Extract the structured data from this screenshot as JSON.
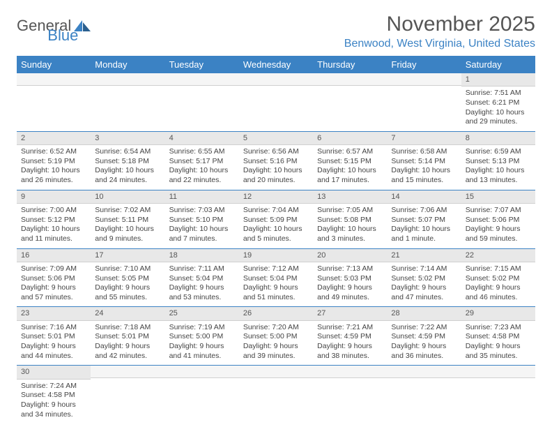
{
  "logo": {
    "text1": "General",
    "text2": "Blue"
  },
  "title": "November 2025",
  "location": "Benwood, West Virginia, United States",
  "colors": {
    "header_bg": "#3b82c4",
    "header_fg": "#ffffff",
    "daynum_bg": "#e8e8e8",
    "border": "#3b82c4",
    "text": "#444444",
    "accent": "#3b82c4"
  },
  "dayNames": [
    "Sunday",
    "Monday",
    "Tuesday",
    "Wednesday",
    "Thursday",
    "Friday",
    "Saturday"
  ],
  "labels": {
    "sunrise": "Sunrise:",
    "sunset": "Sunset:",
    "daylight": "Daylight:"
  },
  "weeks": [
    [
      null,
      null,
      null,
      null,
      null,
      null,
      {
        "n": "1",
        "sr": "7:51 AM",
        "ss": "6:21 PM",
        "dl1": "10 hours",
        "dl2": "and 29 minutes."
      }
    ],
    [
      {
        "n": "2",
        "sr": "6:52 AM",
        "ss": "5:19 PM",
        "dl1": "10 hours",
        "dl2": "and 26 minutes."
      },
      {
        "n": "3",
        "sr": "6:54 AM",
        "ss": "5:18 PM",
        "dl1": "10 hours",
        "dl2": "and 24 minutes."
      },
      {
        "n": "4",
        "sr": "6:55 AM",
        "ss": "5:17 PM",
        "dl1": "10 hours",
        "dl2": "and 22 minutes."
      },
      {
        "n": "5",
        "sr": "6:56 AM",
        "ss": "5:16 PM",
        "dl1": "10 hours",
        "dl2": "and 20 minutes."
      },
      {
        "n": "6",
        "sr": "6:57 AM",
        "ss": "5:15 PM",
        "dl1": "10 hours",
        "dl2": "and 17 minutes."
      },
      {
        "n": "7",
        "sr": "6:58 AM",
        "ss": "5:14 PM",
        "dl1": "10 hours",
        "dl2": "and 15 minutes."
      },
      {
        "n": "8",
        "sr": "6:59 AM",
        "ss": "5:13 PM",
        "dl1": "10 hours",
        "dl2": "and 13 minutes."
      }
    ],
    [
      {
        "n": "9",
        "sr": "7:00 AM",
        "ss": "5:12 PM",
        "dl1": "10 hours",
        "dl2": "and 11 minutes."
      },
      {
        "n": "10",
        "sr": "7:02 AM",
        "ss": "5:11 PM",
        "dl1": "10 hours",
        "dl2": "and 9 minutes."
      },
      {
        "n": "11",
        "sr": "7:03 AM",
        "ss": "5:10 PM",
        "dl1": "10 hours",
        "dl2": "and 7 minutes."
      },
      {
        "n": "12",
        "sr": "7:04 AM",
        "ss": "5:09 PM",
        "dl1": "10 hours",
        "dl2": "and 5 minutes."
      },
      {
        "n": "13",
        "sr": "7:05 AM",
        "ss": "5:08 PM",
        "dl1": "10 hours",
        "dl2": "and 3 minutes."
      },
      {
        "n": "14",
        "sr": "7:06 AM",
        "ss": "5:07 PM",
        "dl1": "10 hours",
        "dl2": "and 1 minute."
      },
      {
        "n": "15",
        "sr": "7:07 AM",
        "ss": "5:06 PM",
        "dl1": "9 hours",
        "dl2": "and 59 minutes."
      }
    ],
    [
      {
        "n": "16",
        "sr": "7:09 AM",
        "ss": "5:06 PM",
        "dl1": "9 hours",
        "dl2": "and 57 minutes."
      },
      {
        "n": "17",
        "sr": "7:10 AM",
        "ss": "5:05 PM",
        "dl1": "9 hours",
        "dl2": "and 55 minutes."
      },
      {
        "n": "18",
        "sr": "7:11 AM",
        "ss": "5:04 PM",
        "dl1": "9 hours",
        "dl2": "and 53 minutes."
      },
      {
        "n": "19",
        "sr": "7:12 AM",
        "ss": "5:04 PM",
        "dl1": "9 hours",
        "dl2": "and 51 minutes."
      },
      {
        "n": "20",
        "sr": "7:13 AM",
        "ss": "5:03 PM",
        "dl1": "9 hours",
        "dl2": "and 49 minutes."
      },
      {
        "n": "21",
        "sr": "7:14 AM",
        "ss": "5:02 PM",
        "dl1": "9 hours",
        "dl2": "and 47 minutes."
      },
      {
        "n": "22",
        "sr": "7:15 AM",
        "ss": "5:02 PM",
        "dl1": "9 hours",
        "dl2": "and 46 minutes."
      }
    ],
    [
      {
        "n": "23",
        "sr": "7:16 AM",
        "ss": "5:01 PM",
        "dl1": "9 hours",
        "dl2": "and 44 minutes."
      },
      {
        "n": "24",
        "sr": "7:18 AM",
        "ss": "5:01 PM",
        "dl1": "9 hours",
        "dl2": "and 42 minutes."
      },
      {
        "n": "25",
        "sr": "7:19 AM",
        "ss": "5:00 PM",
        "dl1": "9 hours",
        "dl2": "and 41 minutes."
      },
      {
        "n": "26",
        "sr": "7:20 AM",
        "ss": "5:00 PM",
        "dl1": "9 hours",
        "dl2": "and 39 minutes."
      },
      {
        "n": "27",
        "sr": "7:21 AM",
        "ss": "4:59 PM",
        "dl1": "9 hours",
        "dl2": "and 38 minutes."
      },
      {
        "n": "28",
        "sr": "7:22 AM",
        "ss": "4:59 PM",
        "dl1": "9 hours",
        "dl2": "and 36 minutes."
      },
      {
        "n": "29",
        "sr": "7:23 AM",
        "ss": "4:58 PM",
        "dl1": "9 hours",
        "dl2": "and 35 minutes."
      }
    ],
    [
      {
        "n": "30",
        "sr": "7:24 AM",
        "ss": "4:58 PM",
        "dl1": "9 hours",
        "dl2": "and 34 minutes."
      },
      null,
      null,
      null,
      null,
      null,
      null
    ]
  ]
}
